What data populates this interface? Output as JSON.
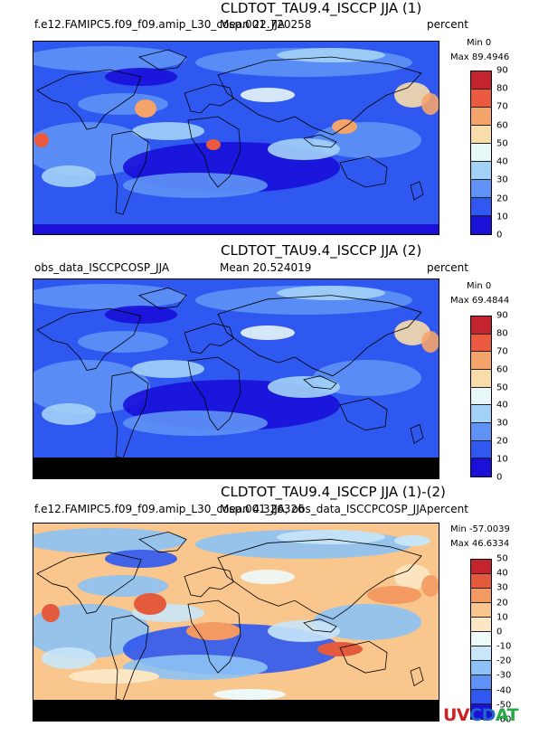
{
  "panels": [
    {
      "title": "CLDTOT_TAU9.4_ISCCP JJA (1)",
      "left_text": "f.e12.FAMIPC5.f09_f09.amip_L30_cosp.001_JJA",
      "mean_text": "Mean 22.720258",
      "center_text": "f.e12.FAMIPC5.f09_f09.amip_L30_cosp.001_JJA",
      "units": "percent",
      "min_text": "Min 0",
      "max_text": "Max 89.4946",
      "ticks": [
        "0",
        "10",
        "20",
        "30",
        "40",
        "50",
        "60",
        "70",
        "80",
        "90"
      ],
      "colors": [
        "#1a10d8",
        "#2e58f0",
        "#5f92f5",
        "#a3d1f7",
        "#e8f7f7",
        "#f8ddaa",
        "#f4a46a",
        "#ea5a3f",
        "#c3242d"
      ],
      "map_palette": {
        "base": "#2e58f0",
        "low": "#1a10d8",
        "mid": "#5f92f5",
        "light": "#a3d1f7",
        "white": "#e8f7f7",
        "tan": "#f8ddaa",
        "orange": "#f4a46a",
        "red": "#ea5a3f"
      }
    },
    {
      "title": "CLDTOT_TAU9.4_ISCCP JJA (2)",
      "left_text": "obs_data_ISCCPCOSP_JJA",
      "mean_text": "Mean 20.524019",
      "center_text": "",
      "units": "percent",
      "min_text": "Min 0",
      "max_text": "Max 69.4844",
      "ticks": [
        "0",
        "10",
        "20",
        "30",
        "40",
        "50",
        "60",
        "70",
        "80",
        "90"
      ],
      "colors": [
        "#1a10d8",
        "#2e58f0",
        "#5f92f5",
        "#a3d1f7",
        "#e8f7f7",
        "#f8ddaa",
        "#f4a46a",
        "#ea5a3f",
        "#c3242d"
      ],
      "map_palette": {
        "base": "#2e58f0",
        "low": "#1a10d8",
        "mid": "#5f92f5",
        "light": "#a3d1f7",
        "white": "#e8f7f7",
        "tan": "#f8ddaa",
        "orange": "#f4a46a",
        "red": "#ea5a3f"
      }
    },
    {
      "title": "CLDTOT_TAU9.4_ISCCP JJA (1)-(2)",
      "left_text": "f.e12.FAMIPC5.f09_f09.amip_L30_cosp.001_JJA, obs_data_ISCCPCOSP_JJA",
      "mean_text": "Mean 4.326326",
      "center_text": "f.e12.FAMIPC5.f09_f09.amip_L30_cosp.001_JJA, obs",
      "units": "percent",
      "min_text": "Min -57.0039",
      "max_text": "Max 46.6334",
      "ticks": [
        "-60",
        "-50",
        "-40",
        "-30",
        "-20",
        "-10",
        "0",
        "10",
        "20",
        "30",
        "40",
        "50"
      ],
      "colors": [
        "#1a10d8",
        "#2e58f0",
        "#5f92f5",
        "#8cc2f5",
        "#c8e6f8",
        "#eefafa",
        "#fbe7c3",
        "#f9c78e",
        "#f39a63",
        "#e45a3c",
        "#c3242d"
      ],
      "map_palette": {
        "base": "#f9c78e",
        "low": "#2e58f0",
        "mid": "#8cc2f5",
        "light": "#c8e6f8",
        "white": "#eefafa",
        "tan": "#fbe7c3",
        "orange": "#f39a63",
        "red": "#e45a3c"
      }
    }
  ],
  "logo": {
    "uv": "UV",
    "cd": "CD",
    "at": "AT"
  }
}
